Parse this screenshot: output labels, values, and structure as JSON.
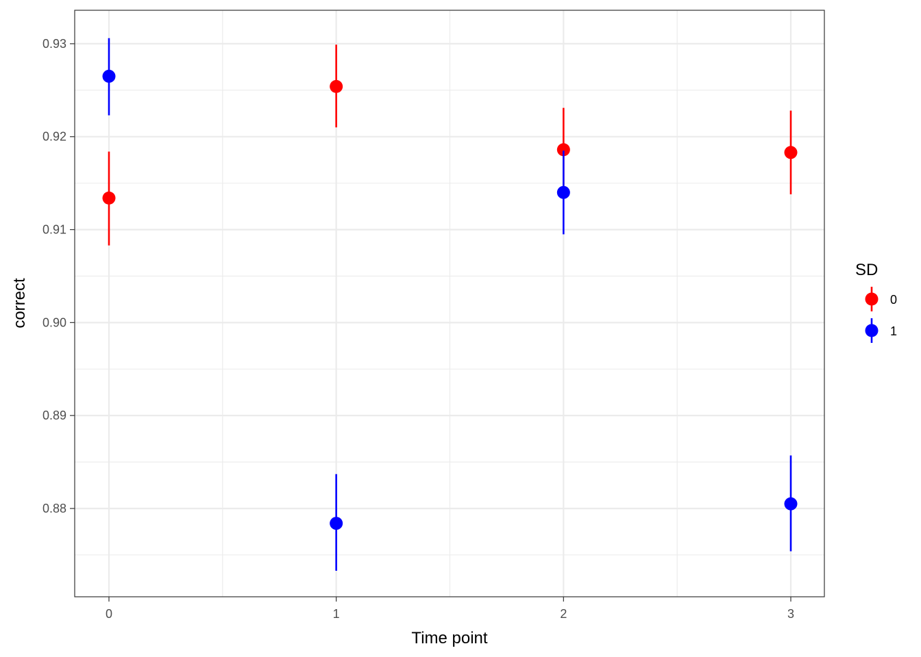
{
  "chart_data": {
    "type": "scatter",
    "subtype": "pointrange",
    "xlabel": "Time point",
    "ylabel": "correct",
    "categories": [
      "0",
      "1",
      "2",
      "3"
    ],
    "ylim": [
      0.8705,
      0.9336
    ],
    "yticks": [
      "0.88",
      "0.89",
      "0.90",
      "0.91",
      "0.92",
      "0.93"
    ],
    "grid": true,
    "legend": {
      "title": "SD",
      "placement": "right"
    },
    "series": [
      {
        "name": "0",
        "color": "#ff0000",
        "values": [
          0.9134,
          0.9254,
          0.9186,
          0.9183
        ],
        "lower": [
          0.9083,
          0.921,
          0.9141,
          0.9138
        ],
        "upper": [
          0.9184,
          0.9299,
          0.9231,
          0.9228
        ]
      },
      {
        "name": "1",
        "color": "#0000ff",
        "values": [
          0.9265,
          0.8784,
          0.914,
          0.8805
        ],
        "lower": [
          0.9223,
          0.8733,
          0.9095,
          0.8754
        ],
        "upper": [
          0.9306,
          0.8837,
          0.9185,
          0.8857
        ]
      }
    ]
  }
}
